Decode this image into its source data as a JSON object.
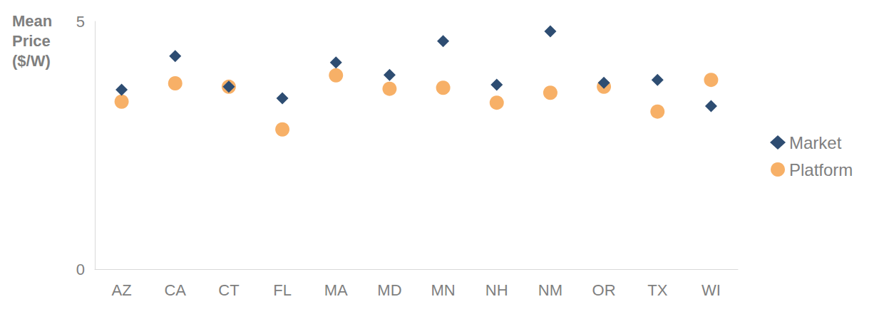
{
  "chart_data": {
    "type": "scatter",
    "y_label": "Mean Price ($/W)",
    "categories": [
      "AZ",
      "CA",
      "CT",
      "FL",
      "MA",
      "MD",
      "MN",
      "NH",
      "NM",
      "OR",
      "TX",
      "WI"
    ],
    "series": [
      {
        "name": "Market",
        "color": "#2e4d72",
        "marker": "diamond",
        "values": [
          3.62,
          4.3,
          3.68,
          3.45,
          4.17,
          3.92,
          4.6,
          3.72,
          4.8,
          3.76,
          3.82,
          3.29
        ]
      },
      {
        "name": "Platform",
        "color": "#f6a95a",
        "marker": "circle",
        "values": [
          3.38,
          3.75,
          3.68,
          2.82,
          3.91,
          3.64,
          3.66,
          3.36,
          3.56,
          3.68,
          3.18,
          3.82
        ]
      }
    ],
    "ylim": [
      0,
      5
    ],
    "yticks": [
      0,
      5
    ],
    "grid": false,
    "legend": "right"
  }
}
